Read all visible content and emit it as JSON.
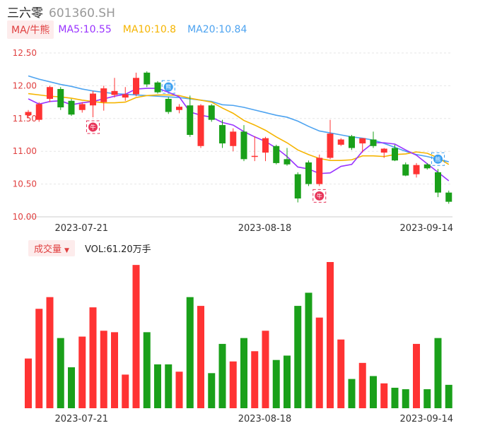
{
  "header": {
    "name": "三六零",
    "code": "601360.SH"
  },
  "legend": {
    "indicator_label": "MA/牛熊",
    "ma5": "MA5:10.55",
    "ma10": "MA10:10.8",
    "ma20": "MA20:10.84"
  },
  "volume_panel": {
    "label": "成交量",
    "value_text": "VOL:61.20万手"
  },
  "colors": {
    "up": "#ff3333",
    "down": "#1aa01a",
    "ma5": "#9933ff",
    "ma10": "#f5b400",
    "ma20": "#4da3f0",
    "axis": "#e04040"
  },
  "markers": {
    "buy_glyph": "牛",
    "sell_glyph": "熊"
  },
  "chart_data": [
    {
      "type": "candlestick",
      "y_ticks": [
        "12.50",
        "12.00",
        "11.50",
        "11.00",
        "10.50",
        "10.00"
      ],
      "ylim": [
        10.0,
        12.5
      ],
      "x_tick_labels": [
        {
          "index": 5,
          "label": "2023-07-21"
        },
        {
          "index": 22,
          "label": "2023-08-18"
        },
        {
          "index": 37,
          "label": "2023-09-14"
        }
      ],
      "candles": [
        {
          "o": 11.55,
          "h": 11.63,
          "l": 11.5,
          "c": 11.6
        },
        {
          "o": 11.48,
          "h": 11.75,
          "l": 11.45,
          "c": 11.72
        },
        {
          "o": 11.8,
          "h": 12.0,
          "l": 11.75,
          "c": 11.98
        },
        {
          "o": 11.95,
          "h": 11.98,
          "l": 11.63,
          "c": 11.67
        },
        {
          "o": 11.77,
          "h": 11.8,
          "l": 11.54,
          "c": 11.56
        },
        {
          "o": 11.63,
          "h": 11.75,
          "l": 11.59,
          "c": 11.72
        },
        {
          "o": 11.7,
          "h": 11.92,
          "l": 11.52,
          "c": 11.88
        },
        {
          "o": 11.75,
          "h": 12.0,
          "l": 11.62,
          "c": 11.96
        },
        {
          "o": 11.86,
          "h": 12.12,
          "l": 11.82,
          "c": 11.92
        },
        {
          "o": 11.82,
          "h": 11.98,
          "l": 11.77,
          "c": 11.87
        },
        {
          "o": 11.87,
          "h": 12.2,
          "l": 11.84,
          "c": 12.12
        },
        {
          "o": 12.2,
          "h": 12.22,
          "l": 11.98,
          "c": 12.02
        },
        {
          "o": 12.05,
          "h": 12.07,
          "l": 11.88,
          "c": 11.9
        },
        {
          "o": 11.8,
          "h": 11.83,
          "l": 11.57,
          "c": 11.6
        },
        {
          "o": 11.63,
          "h": 11.72,
          "l": 11.58,
          "c": 11.68
        },
        {
          "o": 11.7,
          "h": 11.85,
          "l": 11.22,
          "c": 11.25
        },
        {
          "o": 11.08,
          "h": 11.72,
          "l": 11.05,
          "c": 11.7
        },
        {
          "o": 11.7,
          "h": 11.72,
          "l": 11.45,
          "c": 11.48
        },
        {
          "o": 11.4,
          "h": 11.48,
          "l": 11.05,
          "c": 11.12
        },
        {
          "o": 11.08,
          "h": 11.35,
          "l": 11.0,
          "c": 11.3
        },
        {
          "o": 11.3,
          "h": 11.4,
          "l": 10.85,
          "c": 10.88
        },
        {
          "o": 10.92,
          "h": 11.23,
          "l": 10.85,
          "c": 10.93
        },
        {
          "o": 10.98,
          "h": 11.22,
          "l": 10.85,
          "c": 11.2
        },
        {
          "o": 11.08,
          "h": 11.1,
          "l": 10.8,
          "c": 10.82
        },
        {
          "o": 10.88,
          "h": 11.05,
          "l": 10.78,
          "c": 10.8
        },
        {
          "o": 10.65,
          "h": 10.68,
          "l": 10.22,
          "c": 10.28
        },
        {
          "o": 10.83,
          "h": 10.86,
          "l": 10.47,
          "c": 10.5
        },
        {
          "o": 10.5,
          "h": 10.95,
          "l": 10.47,
          "c": 10.9
        },
        {
          "o": 10.9,
          "h": 11.48,
          "l": 10.88,
          "c": 11.27
        },
        {
          "o": 11.1,
          "h": 11.2,
          "l": 11.08,
          "c": 11.18
        },
        {
          "o": 11.23,
          "h": 11.25,
          "l": 11.02,
          "c": 11.05
        },
        {
          "o": 11.12,
          "h": 11.2,
          "l": 10.98,
          "c": 11.2
        },
        {
          "o": 11.18,
          "h": 11.3,
          "l": 11.05,
          "c": 11.08
        },
        {
          "o": 10.98,
          "h": 11.05,
          "l": 10.9,
          "c": 11.04
        },
        {
          "o": 11.05,
          "h": 11.1,
          "l": 10.85,
          "c": 10.86
        },
        {
          "o": 10.8,
          "h": 10.83,
          "l": 10.62,
          "c": 10.63
        },
        {
          "o": 10.65,
          "h": 10.82,
          "l": 10.6,
          "c": 10.79
        },
        {
          "o": 10.8,
          "h": 10.82,
          "l": 10.72,
          "c": 10.74
        },
        {
          "o": 10.68,
          "h": 10.73,
          "l": 10.3,
          "c": 10.37
        },
        {
          "o": 10.37,
          "h": 10.4,
          "l": 10.2,
          "c": 10.23
        }
      ],
      "ma5": [
        11.8,
        11.72,
        11.76,
        11.77,
        11.71,
        11.74,
        11.76,
        11.8,
        11.84,
        11.87,
        11.95,
        11.96,
        11.96,
        11.9,
        11.83,
        11.6,
        11.55,
        11.52,
        11.44,
        11.4,
        11.3,
        11.22,
        11.15,
        11.05,
        10.92,
        10.76,
        10.73,
        10.66,
        10.67,
        10.77,
        10.8,
        11.0,
        11.13,
        11.13,
        11.11,
        11.02,
        10.94,
        10.81,
        10.68,
        10.55
      ],
      "ma10": [
        11.88,
        11.86,
        11.84,
        11.83,
        11.81,
        11.78,
        11.76,
        11.74,
        11.74,
        11.75,
        11.82,
        11.85,
        11.86,
        11.86,
        11.85,
        11.81,
        11.78,
        11.75,
        11.66,
        11.58,
        11.47,
        11.4,
        11.32,
        11.22,
        11.13,
        11.02,
        10.95,
        10.89,
        10.86,
        10.86,
        10.87,
        10.93,
        10.93,
        10.92,
        10.95,
        10.96,
        10.99,
        10.97,
        10.9,
        10.8
      ],
      "ma20": [
        12.15,
        12.1,
        12.06,
        12.02,
        11.99,
        11.95,
        11.92,
        11.9,
        11.88,
        11.87,
        11.86,
        11.85,
        11.84,
        11.83,
        11.82,
        11.8,
        11.78,
        11.76,
        11.71,
        11.7,
        11.67,
        11.63,
        11.59,
        11.55,
        11.52,
        11.46,
        11.38,
        11.31,
        11.28,
        11.25,
        11.22,
        11.2,
        11.17,
        11.12,
        11.06,
        11.0,
        10.95,
        10.92,
        10.88,
        10.84
      ],
      "signals": [
        {
          "index": 6,
          "type": "buy"
        },
        {
          "index": 13,
          "type": "sell"
        },
        {
          "index": 27,
          "type": "buy"
        },
        {
          "index": 38,
          "type": "sell"
        }
      ]
    },
    {
      "type": "bar",
      "name": "volume",
      "values": [
        34,
        68,
        76,
        48,
        28,
        49,
        69,
        53,
        52,
        23,
        98,
        52,
        30,
        30,
        25,
        76,
        70,
        24,
        44,
        32,
        48,
        39,
        53,
        33,
        36,
        70,
        79,
        62,
        100,
        47,
        20,
        31,
        22,
        17,
        14,
        13,
        44,
        13,
        48,
        16
      ],
      "x_tick_labels": [
        {
          "index": 5,
          "label": "2023-07-21"
        },
        {
          "index": 22,
          "label": "2023-08-18"
        },
        {
          "index": 37,
          "label": "2023-09-14"
        }
      ]
    }
  ]
}
